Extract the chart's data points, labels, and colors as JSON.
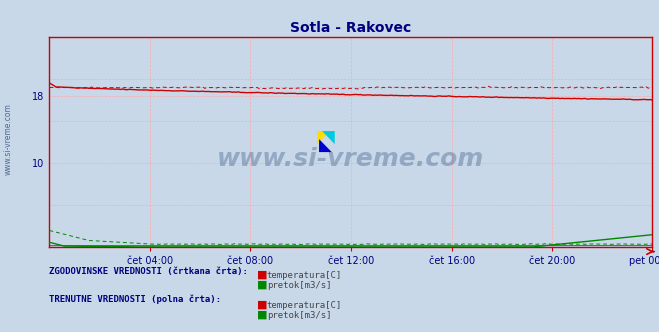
{
  "title": "Sotla - Rakovec",
  "title_color": "#000080",
  "bg_color": "#c8d8e8",
  "plot_bg_color": "#c8d8e8",
  "grid_color": "#ff9999",
  "x_tick_labels": [
    "čet 04:00",
    "čet 08:00",
    "čet 12:00",
    "čet 16:00",
    "čet 20:00",
    "pet 00:00"
  ],
  "x_tick_positions": [
    0.167,
    0.333,
    0.5,
    0.667,
    0.833,
    1.0
  ],
  "ylim": [
    0,
    25
  ],
  "xlim": [
    0,
    1
  ],
  "watermark": "www.si-vreme.com",
  "watermark_color": "#1a3a6e",
  "watermark_alpha": 0.3,
  "legend_text1": "ZGODOVINSKE VREDNOSTI (črtkana črta):",
  "legend_text2": "TRENUTNE VREDNOSTI (polna črta):",
  "legend_item1": "temperatura[C]",
  "legend_item2": "pretok[m3/s]",
  "sidebar_text": "www.si-vreme.com",
  "sidebar_color": "#1a3a6e",
  "red_color": "#cc0000",
  "green_color": "#008800",
  "blue_color": "#0000cc",
  "purple_color": "#8800aa",
  "yticks": [
    10,
    18
  ],
  "ytick_labels": [
    "10",
    "18"
  ]
}
